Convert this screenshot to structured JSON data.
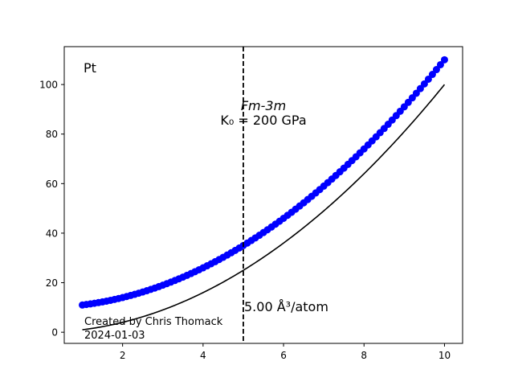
{
  "chart_data": {
    "type": "scatter",
    "title": "",
    "xlabel": "",
    "ylabel": "",
    "xlim": [
      0.55,
      10.45
    ],
    "ylim": [
      -4.5,
      115.3
    ],
    "x_ticks": [
      2,
      4,
      6,
      8,
      10
    ],
    "y_ticks": [
      0,
      20,
      40,
      60,
      80,
      100
    ],
    "grid": false,
    "scatter_series": {
      "color": "#0000ff",
      "marker": "circle",
      "x_start": 1.0,
      "x_end": 10.0,
      "count": 91,
      "curve": "y = 10 + x^2",
      "sample_points": [
        [
          1,
          10.7
        ],
        [
          2,
          13.9
        ],
        [
          3,
          19.3
        ],
        [
          4,
          26.5
        ],
        [
          5,
          35.0
        ],
        [
          6,
          46.0
        ],
        [
          7,
          59.0
        ],
        [
          8,
          74.0
        ],
        [
          9,
          91.0
        ],
        [
          10,
          110.0
        ]
      ]
    },
    "line_series": {
      "color": "#000000",
      "curve": "y = x^2",
      "sample_points": [
        [
          1,
          1
        ],
        [
          2,
          4
        ],
        [
          3,
          9
        ],
        [
          4,
          16
        ],
        [
          5,
          25
        ],
        [
          6,
          36
        ],
        [
          7,
          49
        ],
        [
          8,
          64
        ],
        [
          9,
          81
        ],
        [
          10,
          100
        ]
      ]
    },
    "vertical_line": {
      "x": 5.0,
      "style": "dashed",
      "color": "#000000"
    },
    "annotations": {
      "element": "Pt",
      "space_group": "Fm-3m",
      "bulk_modulus": "K₀ = 200 GPa",
      "volume_label": "5.00 Å³/atom",
      "credit": "Created by Chris Thomack",
      "date": "2024-01-03"
    }
  }
}
